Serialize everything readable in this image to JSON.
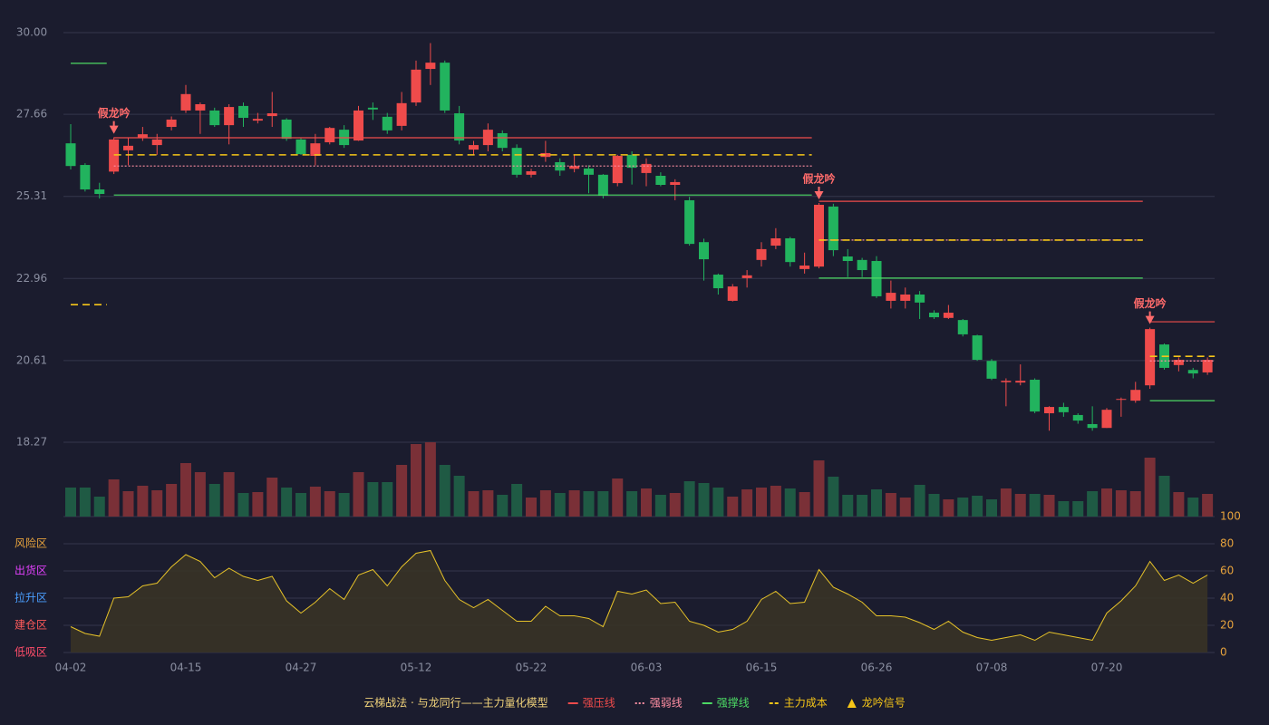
{
  "chart_data": {
    "type": "candlestick",
    "categories": [
      "04-02",
      null,
      null,
      null,
      null,
      null,
      null,
      null,
      "04-15",
      null,
      null,
      null,
      null,
      null,
      null,
      null,
      "04-27",
      null,
      null,
      null,
      null,
      null,
      null,
      null,
      "05-12",
      null,
      null,
      null,
      null,
      null,
      null,
      null,
      "05-22",
      null,
      null,
      null,
      null,
      null,
      null,
      null,
      "06-03",
      null,
      null,
      null,
      null,
      null,
      null,
      null,
      "06-15",
      null,
      null,
      null,
      null,
      null,
      null,
      null,
      "06-26",
      null,
      null,
      null,
      null,
      null,
      null,
      null,
      "07-08",
      null,
      null,
      null,
      null,
      null,
      null,
      null,
      "07-20",
      null,
      null,
      null,
      null,
      null,
      null,
      null
    ],
    "open": [
      26.83,
      26.21,
      25.51,
      26.02,
      26.63,
      26.99,
      26.78,
      27.3,
      27.77,
      27.77,
      27.77,
      27.35,
      27.9,
      27.48,
      27.61,
      27.51,
      26.94,
      26.47,
      26.86,
      27.22,
      26.91,
      27.85,
      27.59,
      27.33,
      28.0,
      28.96,
      29.14,
      27.69,
      26.65,
      26.78,
      27.12,
      26.7,
      25.93,
      26.44,
      26.29,
      26.1,
      26.11,
      25.93,
      25.69,
      26.5,
      25.98,
      25.9,
      25.64,
      25.2,
      24.0,
      23.07,
      22.32,
      22.97,
      23.49,
      23.9,
      24.11,
      23.23,
      23.3,
      25.02,
      23.59,
      23.49,
      23.46,
      22.32,
      22.32,
      22.5,
      21.98,
      21.83,
      21.77,
      21.33,
      20.6,
      19.99,
      19.98,
      20.06,
      19.1,
      19.28,
      19.05,
      18.79,
      18.68,
      19.49,
      19.46,
      19.9,
      21.07,
      20.48,
      20.34,
      20.27
    ],
    "high": [
      27.38,
      26.26,
      25.7,
      27.0,
      27.0,
      27.3,
      27.1,
      27.6,
      28.5,
      28.0,
      27.85,
      27.95,
      28.0,
      27.7,
      28.3,
      27.55,
      27.0,
      27.1,
      27.3,
      27.35,
      27.9,
      28.0,
      27.7,
      28.3,
      29.2,
      29.7,
      29.2,
      27.9,
      26.9,
      27.4,
      27.2,
      26.8,
      26.1,
      26.9,
      26.4,
      26.5,
      26.2,
      25.95,
      26.5,
      26.6,
      26.4,
      26.0,
      25.8,
      25.3,
      24.1,
      23.1,
      22.8,
      23.2,
      24.0,
      24.4,
      24.15,
      23.7,
      25.12,
      25.1,
      23.8,
      23.55,
      23.6,
      22.9,
      22.7,
      22.6,
      22.05,
      22.2,
      21.8,
      21.35,
      20.65,
      20.1,
      20.5,
      20.1,
      19.3,
      19.4,
      19.1,
      19.3,
      19.25,
      19.55,
      20.0,
      21.55,
      21.1,
      20.7,
      20.4,
      20.7
    ],
    "low": [
      26.08,
      25.45,
      25.25,
      25.95,
      26.2,
      26.9,
      26.5,
      27.2,
      27.7,
      27.1,
      27.3,
      26.8,
      27.3,
      27.4,
      27.3,
      26.9,
      26.5,
      26.2,
      26.8,
      26.7,
      26.9,
      27.5,
      27.1,
      27.2,
      27.9,
      28.5,
      27.7,
      26.8,
      26.5,
      26.6,
      26.6,
      25.85,
      25.85,
      26.3,
      25.9,
      26.0,
      25.4,
      25.25,
      25.6,
      25.65,
      25.6,
      25.6,
      25.2,
      23.9,
      22.9,
      22.5,
      22.3,
      22.7,
      23.3,
      23.8,
      23.3,
      23.1,
      23.25,
      23.6,
      23.0,
      23.0,
      22.4,
      22.1,
      22.1,
      21.8,
      21.8,
      21.8,
      21.3,
      20.6,
      20.05,
      19.3,
      19.9,
      19.1,
      18.6,
      19.0,
      18.8,
      18.6,
      18.68,
      19.0,
      19.4,
      19.8,
      20.35,
      20.3,
      20.1,
      20.2
    ],
    "close": [
      26.18,
      25.51,
      25.38,
      26.94,
      26.76,
      27.09,
      26.94,
      27.51,
      28.24,
      27.95,
      27.35,
      27.87,
      27.56,
      27.53,
      27.69,
      26.96,
      26.52,
      26.83,
      27.27,
      26.78,
      27.77,
      27.8,
      27.2,
      27.98,
      28.94,
      29.14,
      27.77,
      26.91,
      26.78,
      27.22,
      26.7,
      25.93,
      26.03,
      26.55,
      26.05,
      26.18,
      25.93,
      25.33,
      26.47,
      26.13,
      26.24,
      25.64,
      25.72,
      23.95,
      23.51,
      22.68,
      22.73,
      23.05,
      23.8,
      24.11,
      23.43,
      23.33,
      25.07,
      23.77,
      23.46,
      23.2,
      22.45,
      22.55,
      22.5,
      22.27,
      21.85,
      21.98,
      21.36,
      20.63,
      20.09,
      20.03,
      20.03,
      19.15,
      19.28,
      19.13,
      18.89,
      18.68,
      19.2,
      19.51,
      19.77,
      21.51,
      20.4,
      20.63,
      20.24,
      20.63
    ],
    "up_color": "#ef4b4b",
    "down_color": "#22b35e",
    "ylim": [
      18.27,
      30
    ],
    "yticks": [
      {
        "value": 30,
        "label": "30.00"
      },
      27.66,
      25.31,
      22.96,
      20.61,
      18.27
    ],
    "grid": true,
    "lines": {
      "resistance": {
        "label": "强压线",
        "color": "#ef4b4b",
        "style": "solid"
      },
      "weak": {
        "label": "强弱线",
        "color": "#ff8fa3",
        "style": "dotted"
      },
      "support": {
        "label": "强撑线",
        "color": "#4cd964",
        "style": "solid"
      },
      "cost": {
        "label": "主力成本",
        "color": "#f5c518",
        "style": "dashed"
      }
    },
    "levels": [
      {
        "start": 0,
        "end": 2,
        "resistance": null,
        "weak": null,
        "support": 29.12,
        "cost": 22.21
      },
      {
        "start": 3,
        "end": 51,
        "resistance": 26.99,
        "weak": 26.18,
        "support": 25.35,
        "cost": 26.5
      },
      {
        "start": 52,
        "end": 74,
        "resistance": 25.17,
        "weak": 24.06,
        "support": 22.97,
        "cost": 24.06
      },
      {
        "start": 75,
        "end": 79,
        "resistance": 21.72,
        "weak": 20.6,
        "support": 19.46,
        "cost": 20.73
      }
    ],
    "signals": [
      {
        "index": 3,
        "label": "假龙吟"
      },
      {
        "index": 52,
        "label": "假龙吟"
      },
      {
        "index": 75,
        "label": "假龙吟"
      }
    ],
    "signal_color": "#ff6b6b",
    "signal_legend": {
      "label": "龙吟信号",
      "color": "#f5c518"
    },
    "legend_title": "云梯战法 · 与龙同行——主力量化模型",
    "legend_title_color": "#f0d27a",
    "volume": {
      "values": [
        32,
        32,
        22,
        41,
        28,
        34,
        29,
        36,
        59,
        49,
        36,
        49,
        26,
        27,
        43,
        32,
        26,
        33,
        28,
        26,
        49,
        38,
        38,
        57,
        80,
        82,
        57,
        45,
        28,
        29,
        24,
        36,
        21,
        29,
        26,
        29,
        28,
        28,
        42,
        28,
        31,
        24,
        26,
        39,
        37,
        32,
        22,
        30,
        32,
        34,
        31,
        27,
        62,
        44,
        24,
        24,
        30,
        26,
        21,
        35,
        25,
        19,
        21,
        23,
        19,
        31,
        25,
        25,
        24,
        17,
        17,
        28,
        31,
        29,
        28,
        65,
        45,
        27,
        21,
        25
      ],
      "ylim": [
        0,
        82
      ],
      "up_color": "#7a3037",
      "down_color": "#1f5a44"
    },
    "indicator": {
      "values": [
        19,
        14,
        12,
        40,
        41,
        49,
        51,
        63,
        72,
        67,
        55,
        62,
        56,
        53,
        56,
        38,
        29,
        37,
        47,
        39,
        57,
        61,
        49,
        63,
        73,
        75,
        53,
        39,
        33,
        39,
        31,
        23,
        23,
        34,
        27,
        27,
        25,
        19,
        45,
        43,
        46,
        36,
        37,
        23,
        20,
        15,
        17,
        23,
        39,
        45,
        36,
        37,
        61,
        48,
        43,
        37,
        27,
        27,
        26,
        22,
        17,
        23,
        15,
        11,
        9,
        11,
        13,
        9,
        15,
        13,
        11,
        9,
        29,
        38,
        49,
        67,
        53,
        57,
        51,
        57
      ],
      "ylim": [
        0,
        100
      ],
      "yticks": [
        0,
        20,
        40,
        60,
        80,
        100
      ],
      "color": "#e6c229",
      "tick_color": "#e6a23c",
      "zones": [
        {
          "value": 80,
          "label": "风险区",
          "color": "#e6a23c"
        },
        {
          "value": 60,
          "label": "出货区",
          "color": "#e040fb"
        },
        {
          "value": 40,
          "label": "拉升区",
          "color": "#4a9eff"
        },
        {
          "value": 20,
          "label": "建仓区",
          "color": "#ff5a5a"
        },
        {
          "value": 0,
          "label": "低吸区",
          "color": "#ff4d6a"
        }
      ]
    }
  }
}
